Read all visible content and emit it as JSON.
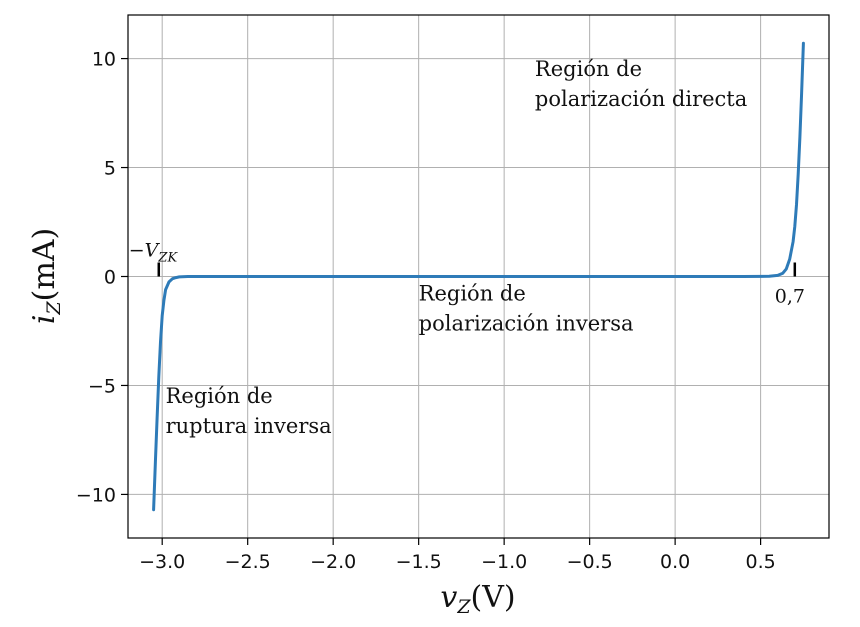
{
  "chart_data": {
    "type": "line",
    "xlabel": {
      "main": "v",
      "sub": "Z",
      "unit": "(V)"
    },
    "ylabel": {
      "main": "i",
      "sub": "Z",
      "unit": "(mA)"
    },
    "xlim": [
      -3.2,
      0.9
    ],
    "ylim": [
      -12,
      12
    ],
    "grid": true,
    "x_ticks": [
      -3.0,
      -2.5,
      -2.0,
      -1.5,
      -1.0,
      -0.5,
      0.0,
      0.5
    ],
    "x_tick_labels": [
      "−3.0",
      "−2.5",
      "−2.0",
      "−1.5",
      "−1.0",
      "−0.5",
      "0.0",
      "0.5"
    ],
    "y_ticks": [
      10,
      5,
      0,
      -5,
      -10
    ],
    "y_tick_labels": [
      "10",
      "5",
      "0",
      "−5",
      "−10"
    ],
    "series": [
      {
        "color": "#2e7bb8",
        "x": [
          -3.05,
          -3.04,
          -3.03,
          -3.02,
          -3.01,
          -3.0,
          -2.99,
          -2.98,
          -2.96,
          -2.94,
          -2.92,
          -2.9,
          -2.85,
          -2.5,
          -2.0,
          -1.5,
          -1.0,
          -0.5,
          0.0,
          0.4,
          0.55,
          0.6,
          0.63,
          0.65,
          0.67,
          0.69,
          0.7,
          0.71,
          0.72,
          0.73,
          0.74,
          0.75
        ],
        "y": [
          -10.7,
          -8.5,
          -6.5,
          -4.6,
          -3.0,
          -1.8,
          -1.1,
          -0.6,
          -0.25,
          -0.1,
          -0.05,
          -0.02,
          0.0,
          0.0,
          0.0,
          0.0,
          0.0,
          0.0,
          0.0,
          0.0,
          0.01,
          0.05,
          0.15,
          0.35,
          0.8,
          1.6,
          2.3,
          3.3,
          4.7,
          6.4,
          8.4,
          10.7
        ]
      }
    ],
    "markers": [
      {
        "x": -3.02,
        "y": 0,
        "label": {
          "pre": "−V",
          "sub": "ZK"
        }
      },
      {
        "x": 0.7,
        "y": 0,
        "label": {
          "pre": "0,7",
          "sub": ""
        }
      }
    ],
    "annotations": [
      {
        "x": -0.82,
        "y": 9.2,
        "lines": [
          "Región de",
          "polarización directa"
        ]
      },
      {
        "x": -1.5,
        "y": -1.1,
        "lines": [
          "Región de",
          "polarización inversa"
        ]
      },
      {
        "x": -2.98,
        "y": -5.8,
        "lines": [
          "Región de",
          "ruptura inversa"
        ]
      }
    ]
  }
}
